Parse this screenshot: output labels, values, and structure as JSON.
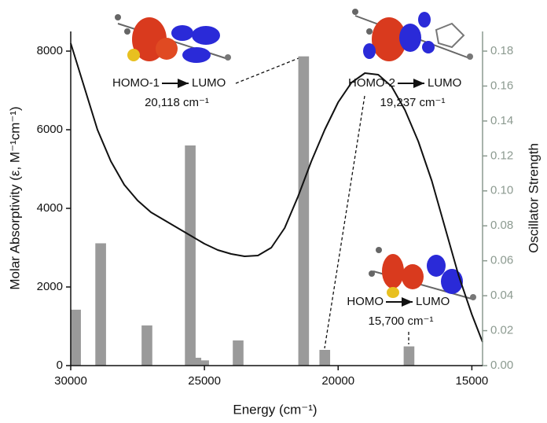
{
  "chart_data": {
    "type": "combo",
    "xlabel": "Energy (cm⁻¹)",
    "ylabel": "Molar Absorptivity (ε, M⁻¹cm⁻¹)",
    "y2label": "Oscillator Strength",
    "xlim": [
      30000,
      14600
    ],
    "xticks": [
      30000,
      25000,
      20000,
      15000
    ],
    "ylim": [
      0,
      8500
    ],
    "yticks": [
      0,
      2000,
      4000,
      6000,
      8000
    ],
    "y2lim": [
      0,
      0.19125
    ],
    "y2ticks": [
      {
        "value": 0,
        "label": "0.00"
      },
      {
        "value": 0.02,
        "label": "0.02"
      },
      {
        "value": 0.04,
        "label": "0.04"
      },
      {
        "value": 0.06,
        "label": "0.06"
      },
      {
        "value": 0.08,
        "label": "0.08"
      },
      {
        "value": 0.1,
        "label": "0.10"
      },
      {
        "value": 0.12,
        "label": "0.12"
      },
      {
        "value": 0.14,
        "label": "0.14"
      },
      {
        "value": 0.16,
        "label": "0.16"
      },
      {
        "value": 0.18,
        "label": "0.18"
      }
    ],
    "series": [
      {
        "type": "line",
        "axis": "y",
        "color": "#111111",
        "x": [
          30000,
          29500,
          29000,
          28500,
          28000,
          27500,
          27000,
          26500,
          26000,
          25500,
          25000,
          24500,
          24000,
          23500,
          23000,
          22500,
          22000,
          21500,
          21000,
          20500,
          20000,
          19500,
          19000,
          18500,
          18000,
          17500,
          17000,
          16500,
          16000,
          15500,
          15000,
          14600
        ],
        "values": [
          8200,
          7100,
          6000,
          5200,
          4600,
          4200,
          3900,
          3700,
          3500,
          3300,
          3100,
          2940,
          2840,
          2780,
          2800,
          3000,
          3500,
          4300,
          5200,
          6000,
          6700,
          7200,
          7440,
          7400,
          7100,
          6500,
          5700,
          4700,
          3500,
          2300,
          1300,
          600
        ]
      },
      {
        "type": "bar",
        "axis": "y2",
        "color": "#9a9a9a",
        "x": [
          29820,
          28880,
          27150,
          25530,
          25320,
          25030,
          23740,
          21290,
          20500,
          17350
        ],
        "values": [
          0.032,
          0.07,
          0.023,
          0.126,
          0.0045,
          0.003,
          0.0144,
          0.177,
          0.009,
          0.011
        ]
      }
    ],
    "annotations": [
      {
        "from": "HOMO-1",
        "to": "LUMO",
        "energy": "20,118 cm⁻¹"
      },
      {
        "from": "HOMO-2",
        "to": "LUMO",
        "energy": "19,237 cm⁻¹"
      },
      {
        "from": "HOMO",
        "to": "LUMO",
        "energy": "15,700 cm⁻¹"
      }
    ]
  }
}
